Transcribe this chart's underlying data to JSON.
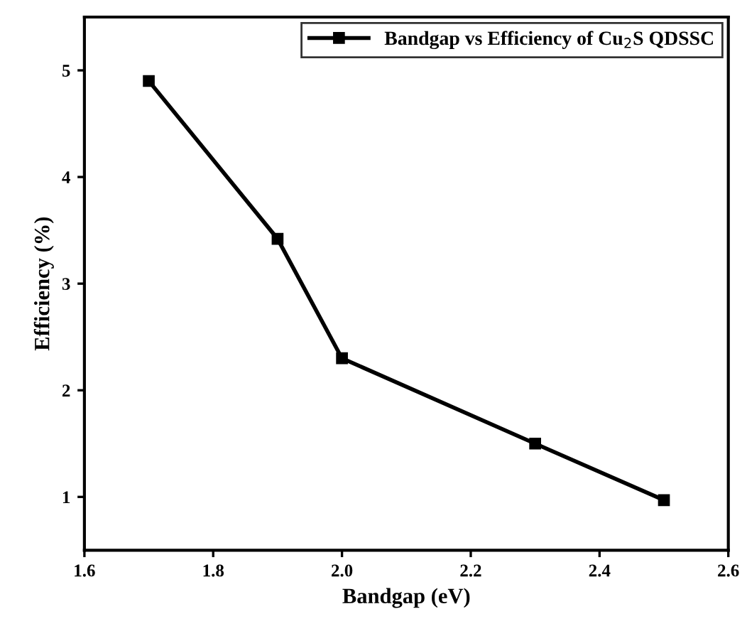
{
  "chart_data": {
    "type": "line",
    "xlabel": "Bandgap (eV)",
    "ylabel": "Efficiency (%)",
    "x": [
      1.7,
      1.9,
      2.0,
      2.3,
      2.5
    ],
    "series": [
      {
        "name": "Bandgap vs Efficiency of Cu$_{2}$S QDSSC",
        "color": "#000000",
        "values": [
          4.9,
          3.42,
          2.3,
          1.5,
          0.97
        ]
      }
    ],
    "xlim": [
      1.6,
      2.6
    ],
    "xticks": [
      1.6,
      1.8,
      {
        "value": 2,
        "label": "2.0"
      },
      2.2,
      2.4,
      2.6
    ],
    "ylim": [
      0.5,
      5.5
    ],
    "yticks": [
      1,
      2,
      3,
      4,
      5
    ],
    "grid": false,
    "legend": "top right",
    "marker": "square",
    "line_style": "solid"
  }
}
